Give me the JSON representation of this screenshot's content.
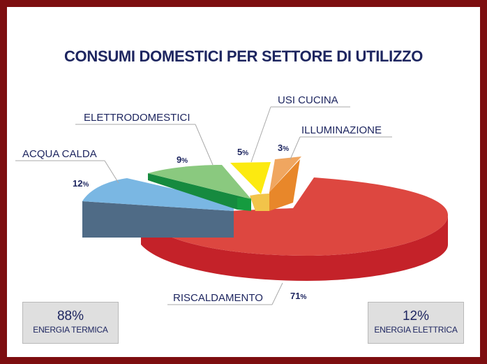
{
  "chart_data": {
    "type": "pie",
    "title": "CONSUMI DOMESTICI PER SETTORE DI UTILIZZO",
    "slices": [
      {
        "label": "RISCALDAMENTO",
        "value": 71,
        "value_label": "71",
        "color": "#d9363a"
      },
      {
        "label": "ACQUA CALDA",
        "value": 12,
        "value_label": "12",
        "color": "#7cb8e4"
      },
      {
        "label": "ELETTRODOMESTICI",
        "value": 9,
        "value_label": "9",
        "color": "#86c87e"
      },
      {
        "label": "USI CUCINA",
        "value": 5,
        "value_label": "5",
        "color": "#fbe712"
      },
      {
        "label": "ILLUMINAZIONE",
        "value": 3,
        "value_label": "3",
        "color": "#e69a52"
      }
    ],
    "percent_symbol": "%"
  },
  "summary": {
    "left": {
      "value": "88%",
      "label": "ENERGIA TERMICA"
    },
    "right": {
      "value": "12%",
      "label": "ENERGIA ELETTRICA"
    }
  }
}
